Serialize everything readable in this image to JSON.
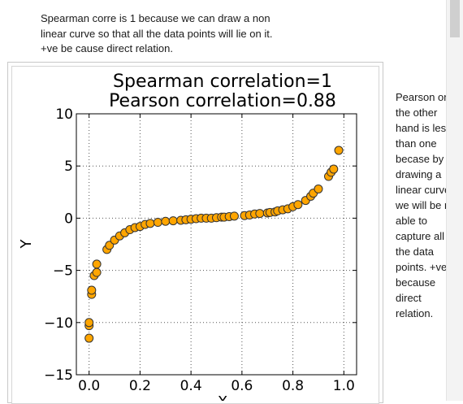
{
  "top_note": "Spearman corre is 1 because we can draw a non linear curve so that all the data points will lie on it. +ve be cause direct relation.",
  "side_note": "Pearson on the other hand is less than one becase by drawing a linear curve we will be not able to capture all the data points. +ve because direct relation.",
  "colors": {
    "marker_fill": "#FFA500",
    "marker_edge": "#333333",
    "grid": "#555555"
  },
  "chart_data": {
    "type": "scatter",
    "title": "Spearman correlation=1",
    "subtitle": "Pearson correlation=0.88",
    "xlabel": "X",
    "ylabel": "Y",
    "xlim": [
      -0.05,
      1.05
    ],
    "ylim": [
      -15,
      10
    ],
    "xticks": [
      0.0,
      0.2,
      0.4,
      0.6,
      0.8,
      1.0
    ],
    "xtick_labels": [
      "0.0",
      "0.2",
      "0.4",
      "0.6",
      "0.8",
      "1.0"
    ],
    "yticks": [
      -15,
      -10,
      -5,
      0,
      5,
      10
    ],
    "ytick_labels": [
      "−15",
      "−10",
      "−5",
      "0",
      "5",
      "10"
    ],
    "grid": true,
    "series": [
      {
        "x": [
          0.0,
          0.0,
          0.0,
          0.01,
          0.01,
          0.02,
          0.03,
          0.03,
          0.07,
          0.08,
          0.1,
          0.12,
          0.14,
          0.16,
          0.18,
          0.2,
          0.22,
          0.24,
          0.27,
          0.3,
          0.33,
          0.36,
          0.38,
          0.4,
          0.42,
          0.44,
          0.46,
          0.48,
          0.5,
          0.52,
          0.53,
          0.55,
          0.57,
          0.61,
          0.63,
          0.65,
          0.67,
          0.7,
          0.71,
          0.73,
          0.74,
          0.76,
          0.78,
          0.8,
          0.82,
          0.85,
          0.87,
          0.88,
          0.9,
          0.94,
          0.95,
          0.96,
          0.98
        ],
        "y": [
          -11.5,
          -10.3,
          -10.0,
          -7.3,
          -6.9,
          -5.5,
          -5.2,
          -4.4,
          -3.0,
          -2.6,
          -2.1,
          -1.7,
          -1.4,
          -1.1,
          -0.9,
          -0.8,
          -0.6,
          -0.5,
          -0.4,
          -0.3,
          -0.25,
          -0.2,
          -0.15,
          -0.1,
          -0.05,
          0.0,
          0.0,
          0.0,
          0.05,
          0.1,
          0.1,
          0.15,
          0.2,
          0.25,
          0.3,
          0.4,
          0.45,
          0.5,
          0.55,
          0.6,
          0.7,
          0.8,
          0.9,
          1.1,
          1.3,
          1.7,
          2.1,
          2.4,
          2.8,
          4.0,
          4.4,
          4.7,
          6.5
        ]
      }
    ]
  }
}
